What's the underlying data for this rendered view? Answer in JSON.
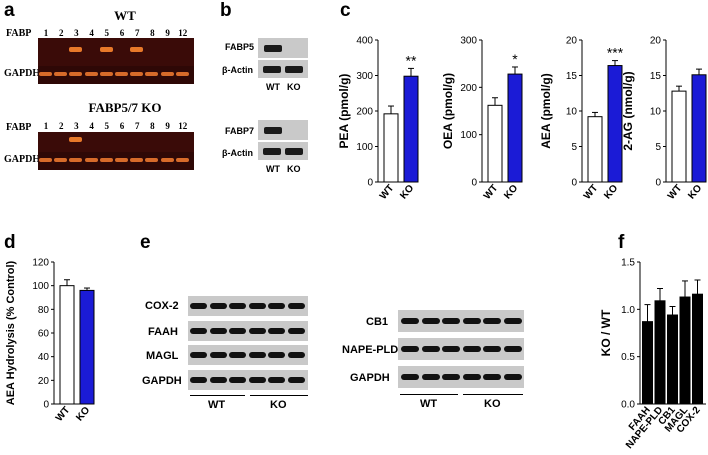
{
  "panel_labels": {
    "a": "a",
    "b": "b",
    "c": "c",
    "d": "d",
    "e": "e",
    "f": "f"
  },
  "panel_a": {
    "wt_title": "WT",
    "ko_title": "FABP5/7 KO",
    "row_fabp": "FABP",
    "row_gapdh": "GAPDH",
    "lanes": [
      "1",
      "2",
      "3",
      "4",
      "5",
      "6",
      "7",
      "8",
      "9",
      "12"
    ]
  },
  "panel_b": {
    "fabp5": "FABP5",
    "beta_actin_1": "β-Actin",
    "fabp7": "FABP7",
    "beta_actin_2": "β-Actin",
    "wt": "WT",
    "ko": "KO"
  },
  "panel_e": {
    "left_rows": [
      "COX-2",
      "FAAH",
      "MAGL",
      "GAPDH"
    ],
    "right_rows": [
      "CB1",
      "NAPE-PLD",
      "GAPDH"
    ],
    "wt": "WT",
    "ko": "KO"
  },
  "chart_data": [
    {
      "type": "bar",
      "ylabel": "PEA (pmol/g)",
      "categories": [
        "WT",
        "KO"
      ],
      "values": [
        192,
        298
      ],
      "errors": [
        22,
        22
      ],
      "ylim": [
        0,
        400
      ],
      "yticks": [
        0,
        100,
        200,
        300,
        400
      ],
      "annotation": "**",
      "colors": [
        "#ffffff",
        "#1b1bd6"
      ]
    },
    {
      "type": "bar",
      "ylabel": "OEA (pmol/g)",
      "categories": [
        "WT",
        "KO"
      ],
      "values": [
        162,
        228
      ],
      "errors": [
        16,
        15
      ],
      "ylim": [
        0,
        300
      ],
      "yticks": [
        0,
        100,
        200,
        300
      ],
      "annotation": "*",
      "colors": [
        "#ffffff",
        "#1b1bd6"
      ]
    },
    {
      "type": "bar",
      "ylabel": "AEA (pmol/g)",
      "categories": [
        "WT",
        "KO"
      ],
      "values": [
        9.2,
        16.4
      ],
      "errors": [
        0.6,
        0.7
      ],
      "ylim": [
        0,
        20
      ],
      "yticks": [
        0,
        5,
        10,
        15,
        20
      ],
      "annotation": "***",
      "colors": [
        "#ffffff",
        "#1b1bd6"
      ]
    },
    {
      "type": "bar",
      "ylabel": "2-AG (nmol/g)",
      "categories": [
        "WT",
        "KO"
      ],
      "values": [
        12.8,
        15.1
      ],
      "errors": [
        0.7,
        0.8
      ],
      "ylim": [
        0,
        20
      ],
      "yticks": [
        0,
        5,
        10,
        15,
        20
      ],
      "annotation": "",
      "colors": [
        "#ffffff",
        "#1b1bd6"
      ]
    },
    {
      "type": "bar",
      "ylabel": "AEA Hydrolysis (% Control)",
      "categories": [
        "WT",
        "KO"
      ],
      "values": [
        100,
        96
      ],
      "errors": [
        5,
        2
      ],
      "ylim": [
        0,
        120
      ],
      "yticks": [
        0,
        20,
        40,
        60,
        80,
        100,
        120
      ],
      "annotation": "",
      "colors": [
        "#ffffff",
        "#1b1bd6"
      ]
    },
    {
      "type": "bar",
      "ylabel": "KO / WT",
      "categories": [
        "FAAH",
        "NAPE-PLD",
        "CB1",
        "MAGL",
        "COX-2"
      ],
      "values": [
        0.87,
        1.09,
        0.94,
        1.13,
        1.16
      ],
      "errors": [
        0.18,
        0.13,
        0.09,
        0.17,
        0.15
      ],
      "ylim": [
        0,
        1.5
      ],
      "yticks": [
        0.0,
        0.5,
        1.0,
        1.5
      ],
      "annotation": "",
      "colors": [
        "#000000"
      ]
    }
  ]
}
